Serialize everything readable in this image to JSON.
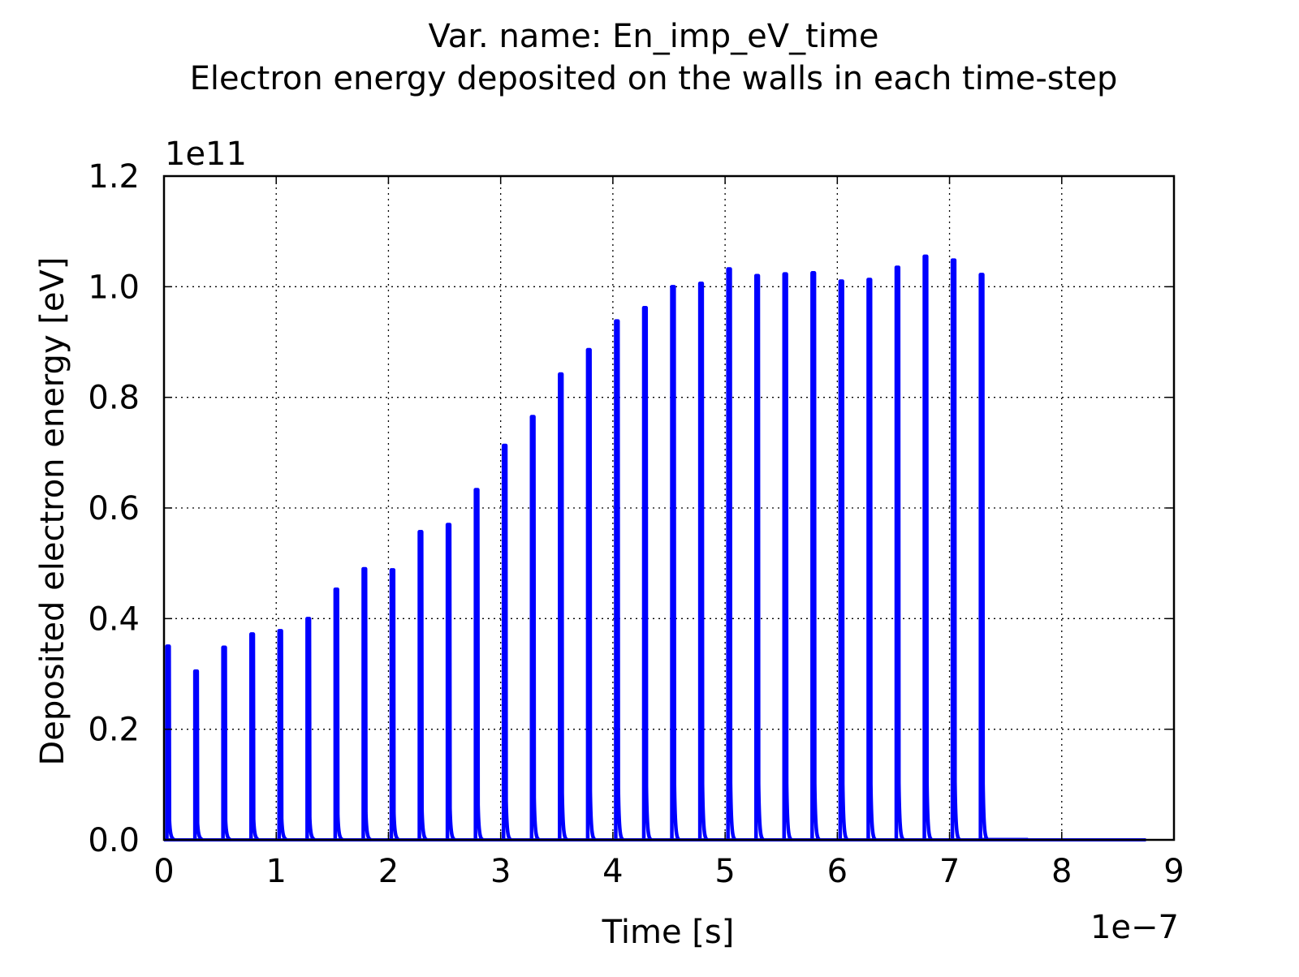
{
  "chart_data": {
    "type": "line",
    "title_lines": [
      "Var. name: En_imp_eV_time",
      "Electron energy deposited on the walls in each time-step"
    ],
    "xlabel": "Time [s]",
    "ylabel": "Deposited electron energy [eV]",
    "x_offset_label": "1e−7",
    "y_offset_label": "1e11",
    "x_scale": 1e-07,
    "y_scale": 100000000000.0,
    "xlim": [
      0,
      9
    ],
    "ylim": [
      0,
      1.2
    ],
    "x_ticks": [
      0,
      1,
      2,
      3,
      4,
      5,
      6,
      7,
      8,
      9
    ],
    "x_tick_labels": [
      "0",
      "1",
      "2",
      "3",
      "4",
      "5",
      "6",
      "7",
      "8",
      "9"
    ],
    "y_ticks": [
      0.0,
      0.2,
      0.4,
      0.6,
      0.8,
      1.0,
      1.2
    ],
    "y_tick_labels": [
      "0.0",
      "0.2",
      "0.4",
      "0.6",
      "0.8",
      "1.0",
      "1.2"
    ],
    "grid": true,
    "grid_style": "dotted",
    "line_color": "#0000ff",
    "x_end": 8.75,
    "series": [
      {
        "peak_times": [
          0.03,
          0.28,
          0.53,
          0.78,
          1.03,
          1.28,
          1.53,
          1.78,
          2.03,
          2.28,
          2.53,
          2.78,
          3.03,
          3.28,
          3.53,
          3.78,
          4.03,
          4.28,
          4.53,
          4.78,
          5.03,
          5.28,
          5.53,
          5.78,
          6.03,
          6.28,
          6.53,
          6.78,
          7.03,
          7.28
        ],
        "peak_values": [
          0.35,
          0.305,
          0.348,
          0.372,
          0.378,
          0.4,
          0.453,
          0.49,
          0.488,
          0.557,
          0.57,
          0.633,
          0.713,
          0.765,
          0.842,
          0.886,
          0.938,
          0.962,
          1.0,
          1.006,
          1.032,
          1.02,
          1.023,
          1.025,
          1.01,
          1.013,
          1.035,
          1.055,
          1.048,
          1.022
        ]
      }
    ]
  }
}
